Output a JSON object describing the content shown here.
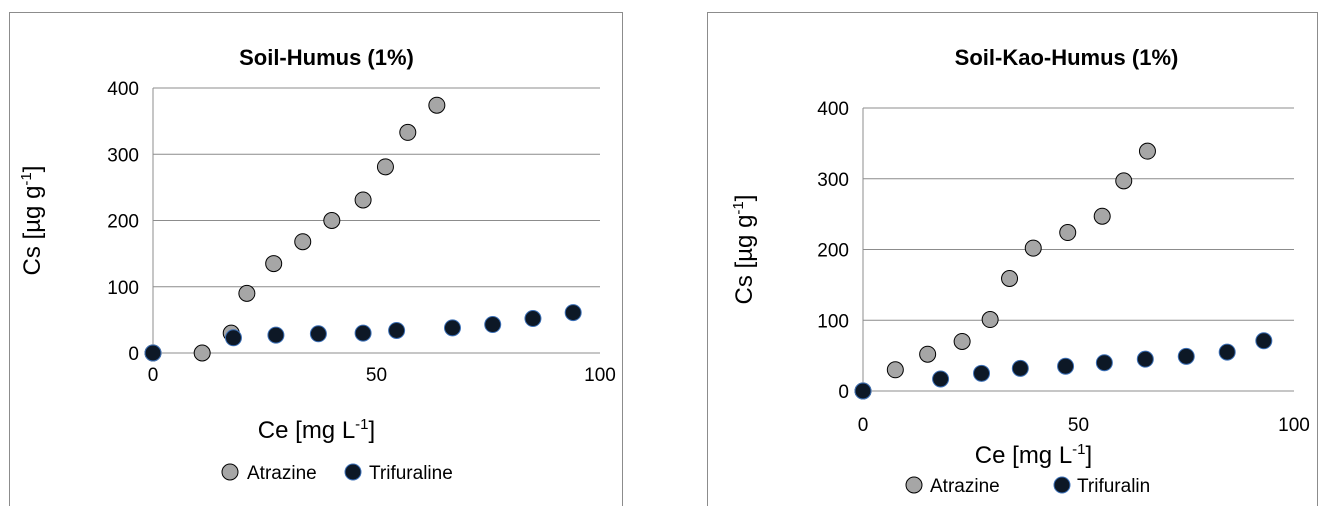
{
  "chart_data": [
    {
      "type": "scatter",
      "title": "Soil-Humus (1%)",
      "xlabel": "Ce [mg L",
      "xlabel_sup": "-1",
      "xlabel_end": "]",
      "ylabel": "Cs [µg g",
      "ylabel_sup": "-1",
      "ylabel_end": "]",
      "xlim": [
        0,
        100
      ],
      "ylim": [
        0,
        400
      ],
      "xticks": [
        0,
        50,
        100
      ],
      "yticks": [
        0,
        100,
        200,
        300,
        400
      ],
      "grid": true,
      "legend_position": "bottom",
      "series": [
        {
          "name": "Atrazine",
          "color": "#a6a6a6",
          "x": [
            0,
            11,
            17.5,
            21,
            27,
            33.5,
            40,
            47,
            52,
            57,
            63.5
          ],
          "y": [
            0,
            0,
            30,
            90,
            135,
            168,
            200,
            231,
            281,
            333,
            374
          ]
        },
        {
          "name": "Trifuraline",
          "color": "#0d1826",
          "x": [
            0,
            18,
            27.5,
            37,
            47,
            54.5,
            67,
            76,
            85,
            94
          ],
          "y": [
            0,
            23,
            27,
            29,
            30,
            34,
            38,
            43,
            52,
            61
          ]
        }
      ]
    },
    {
      "type": "scatter",
      "title": "Soil-Kao-Humus (1%)",
      "xlabel": "Ce [mg L",
      "xlabel_sup": "-1",
      "xlabel_end": "]",
      "ylabel": "Cs [µg g",
      "ylabel_sup": "-1",
      "ylabel_end": "]",
      "xlim": [
        0,
        100
      ],
      "ylim": [
        0,
        400
      ],
      "xticks": [
        0,
        50,
        100
      ],
      "yticks": [
        0,
        100,
        200,
        300,
        400
      ],
      "grid": true,
      "legend_position": "bottom",
      "series": [
        {
          "name": "Atrazine",
          "color": "#a6a6a6",
          "x": [
            0,
            7.5,
            15,
            23,
            29.5,
            34,
            39.5,
            47.5,
            55.5,
            60.5,
            66
          ],
          "y": [
            0,
            30,
            52,
            70,
            101,
            159,
            202,
            224,
            247,
            297,
            339
          ]
        },
        {
          "name": "Trifuralin",
          "color": "#0d1826",
          "x": [
            0,
            18,
            27.5,
            36.5,
            47,
            56,
            65.5,
            75,
            84.5,
            93
          ],
          "y": [
            0,
            17,
            25,
            32,
            35,
            40,
            45,
            49,
            55,
            71
          ]
        }
      ]
    }
  ]
}
